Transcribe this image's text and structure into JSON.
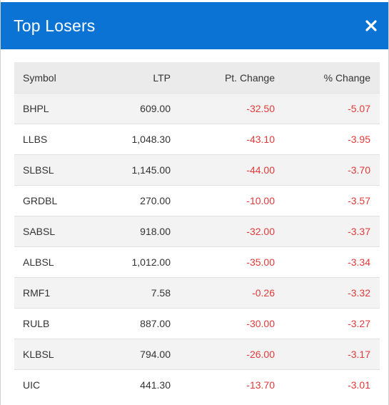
{
  "header": {
    "title": "Top Losers",
    "close_icon": "close-icon"
  },
  "colors": {
    "header_bg": "#0a73d4",
    "negative": "#e03a3a",
    "table_header_bg": "#ebebeb",
    "row_stripe": "#f3f3f3"
  },
  "table": {
    "columns": [
      "Symbol",
      "LTP",
      "Pt. Change",
      "% Change"
    ],
    "rows": [
      {
        "symbol": "BHPL",
        "ltp": "609.00",
        "pt_change": "-32.50",
        "pct_change": "-5.07"
      },
      {
        "symbol": "LLBS",
        "ltp": "1,048.30",
        "pt_change": "-43.10",
        "pct_change": "-3.95"
      },
      {
        "symbol": "SLBSL",
        "ltp": "1,145.00",
        "pt_change": "-44.00",
        "pct_change": "-3.70"
      },
      {
        "symbol": "GRDBL",
        "ltp": "270.00",
        "pt_change": "-10.00",
        "pct_change": "-3.57"
      },
      {
        "symbol": "SABSL",
        "ltp": "918.00",
        "pt_change": "-32.00",
        "pct_change": "-3.37"
      },
      {
        "symbol": "ALBSL",
        "ltp": "1,012.00",
        "pt_change": "-35.00",
        "pct_change": "-3.34"
      },
      {
        "symbol": "RMF1",
        "ltp": "7.58",
        "pt_change": "-0.26",
        "pct_change": "-3.32"
      },
      {
        "symbol": "RULB",
        "ltp": "887.00",
        "pt_change": "-30.00",
        "pct_change": "-3.27"
      },
      {
        "symbol": "KLBSL",
        "ltp": "794.00",
        "pt_change": "-26.00",
        "pct_change": "-3.17"
      },
      {
        "symbol": "UIC",
        "ltp": "441.30",
        "pt_change": "-13.70",
        "pct_change": "-3.01"
      }
    ]
  }
}
